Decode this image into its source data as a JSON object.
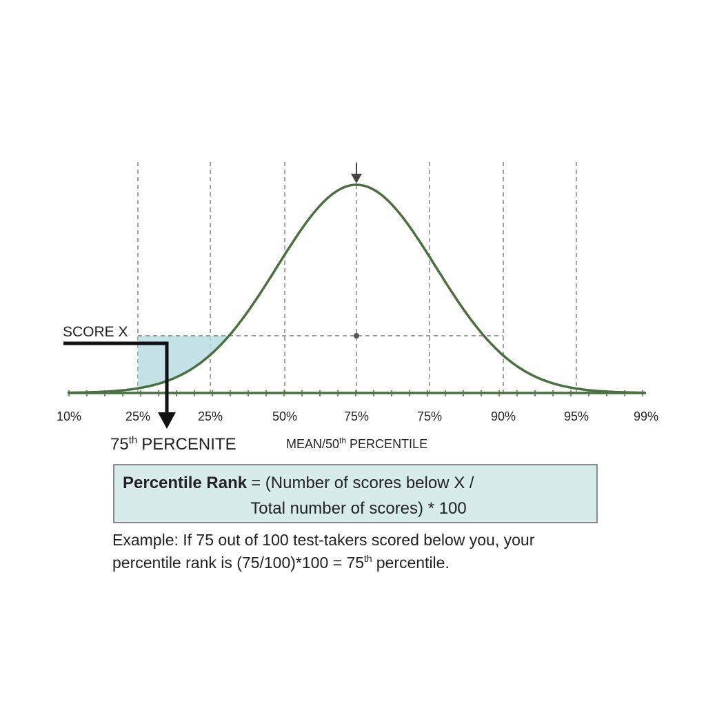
{
  "axis_labels": [
    "10%",
    "25%",
    "25%",
    "50%",
    "75%",
    "75%",
    "90%",
    "95%",
    "99%"
  ],
  "score_label": "SCORE X",
  "percentile_label": {
    "number": "75",
    "suffix": "th",
    "text": "PERCENITE"
  },
  "mean_label": {
    "number": "MEAN/50",
    "suffix": "th",
    "text": "PERCENTILE"
  },
  "formula": {
    "term": "Percentile Rank",
    "line1": "= (Number of scores below X /",
    "line2": "Total number of scores) * 100"
  },
  "example": {
    "line1": "Example: If 75 out of 100 test-takers scored below you, your",
    "line2": "percentile rank is (75/100)*100 = 75",
    "suffix": "th",
    "end": "percentile."
  }
}
